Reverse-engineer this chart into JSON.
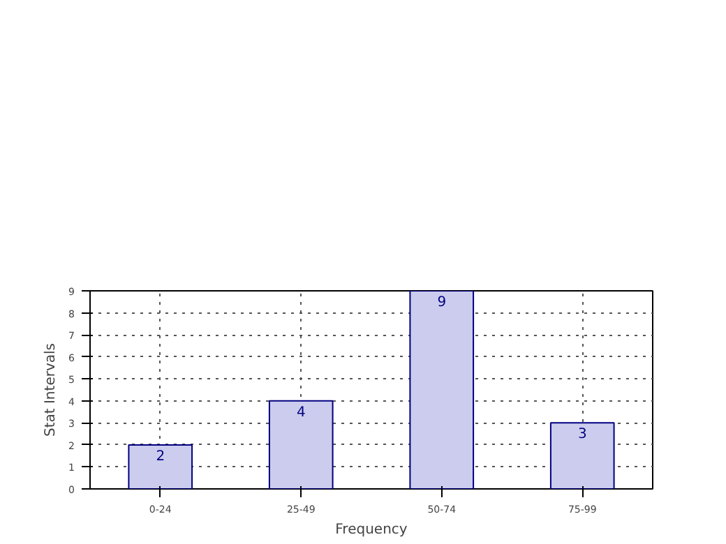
{
  "chart_data": {
    "type": "bar",
    "xlabel": "Frequency",
    "ylabel": "Stat Intervals",
    "categories": [
      "0-24",
      "25-49",
      "50-74",
      "75-99"
    ],
    "values": [
      2,
      4,
      9,
      3
    ],
    "color": "#ccccee",
    "ylim": [
      0,
      9
    ],
    "yticks": [
      0,
      1,
      2,
      3,
      4,
      5,
      6,
      7,
      8,
      9
    ],
    "grid": true,
    "data_labels": true
  }
}
